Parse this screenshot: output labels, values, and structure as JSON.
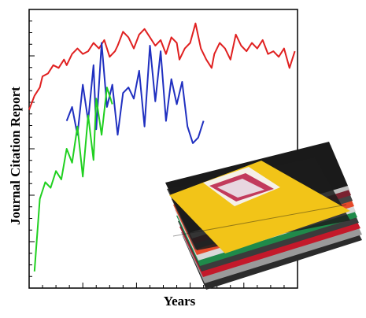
{
  "chart_data": {
    "type": "line",
    "xlabel": "Years",
    "ylabel": "Journal Citation Report",
    "x_ticks": 20,
    "y_ticks": 24,
    "xlim": [
      0,
      100
    ],
    "ylim": [
      0,
      100
    ],
    "grid": false,
    "legend": "none",
    "series": [
      {
        "color": "#e02020",
        "x": [
          0,
          2,
          4,
          5,
          7,
          9,
          11,
          13,
          14,
          16,
          18,
          20,
          22,
          24,
          26,
          28,
          30,
          32,
          33,
          35,
          37,
          39,
          41,
          43,
          45,
          47,
          49,
          51,
          53,
          55,
          56,
          58,
          60,
          62,
          64,
          66,
          68,
          69,
          71,
          73,
          75,
          77,
          79,
          81,
          83,
          85,
          87,
          89,
          91,
          93,
          95,
          97,
          99
        ],
        "y": [
          64,
          69,
          72,
          76,
          77,
          80,
          79,
          82,
          80,
          84,
          86,
          84,
          85,
          88,
          86,
          89,
          83,
          85,
          87,
          92,
          90,
          86,
          91,
          93,
          90,
          87,
          89,
          84,
          90,
          88,
          82,
          86,
          88,
          95,
          86,
          82,
          79,
          84,
          88,
          86,
          82,
          91,
          87,
          85,
          88,
          86,
          89,
          84,
          85,
          83,
          86,
          79,
          85
        ]
      },
      {
        "color": "#2030c0",
        "x": [
          14,
          16,
          18,
          20,
          22,
          24,
          25,
          27,
          29,
          31,
          33,
          35,
          37,
          39,
          41,
          43,
          45,
          47,
          49,
          51,
          53,
          55,
          57,
          59,
          61,
          63,
          65
        ],
        "y": [
          60,
          65,
          55,
          73,
          60,
          80,
          57,
          88,
          65,
          73,
          55,
          70,
          72,
          68,
          78,
          58,
          87,
          67,
          85,
          60,
          75,
          66,
          74,
          58,
          52,
          54,
          60
        ]
      },
      {
        "color": "#20d020",
        "x": [
          2,
          4,
          6,
          8,
          10,
          12,
          14,
          16,
          18,
          20,
          22,
          24,
          25,
          27,
          29,
          31
        ],
        "y": [
          6,
          32,
          38,
          36,
          42,
          39,
          50,
          45,
          58,
          40,
          62,
          46,
          68,
          55,
          72,
          66
        ]
      }
    ]
  }
}
